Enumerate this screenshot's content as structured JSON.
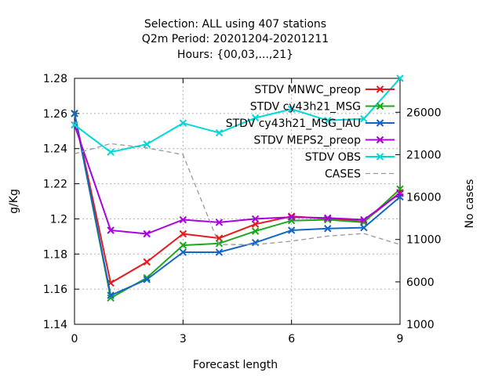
{
  "chart_data": {
    "type": "line",
    "title_lines": [
      "Selection: ALL using   407 stations",
      "Q2m   Period: 20201204-20201211",
      "Hours: {00,03,...,21}"
    ],
    "xlabel": "Forecast length",
    "ylabel": "g/Kg",
    "y2label": "No cases",
    "xlim": [
      0,
      9
    ],
    "ylim": [
      1.14,
      1.28
    ],
    "y2lim": [
      1000,
      30000
    ],
    "xticks": [
      0,
      3,
      6,
      9
    ],
    "yticks": [
      1.14,
      1.16,
      1.18,
      1.2,
      1.22,
      1.24,
      1.26,
      1.28
    ],
    "ytick_labels": [
      "1.14",
      "1.16",
      "1.18",
      "1.2",
      "1.22",
      "1.24",
      "1.26",
      "1.28"
    ],
    "y2ticks": [
      1000,
      6000,
      11000,
      16000,
      21000,
      26000
    ],
    "grid": true,
    "legend_position": "top-right",
    "series": [
      {
        "name": "STDV MNWC_preop",
        "color": "#e41a1c",
        "axis": "y",
        "marker": "x",
        "x": [
          0,
          1,
          2,
          3,
          4,
          5,
          6,
          7,
          8,
          9
        ],
        "values": [
          1.26,
          1.1635,
          1.1755,
          1.1915,
          1.189,
          1.197,
          1.2015,
          1.2,
          1.1985,
          1.215
        ]
      },
      {
        "name": "STDV cy43h21_MSG",
        "color": "#1ca81c",
        "axis": "y",
        "marker": "x",
        "x": [
          0,
          1,
          2,
          3,
          4,
          5,
          6,
          7,
          8,
          9
        ],
        "values": [
          1.26,
          1.155,
          1.1665,
          1.185,
          1.186,
          1.193,
          1.199,
          1.1995,
          1.198,
          1.217
        ]
      },
      {
        "name": "STDV cy43h21_MSG_IAU",
        "color": "#1565c8",
        "axis": "y",
        "marker": "x",
        "x": [
          0,
          1,
          2,
          3,
          4,
          5,
          6,
          7,
          8,
          9
        ],
        "values": [
          1.26,
          1.1565,
          1.1655,
          1.181,
          1.181,
          1.1865,
          1.1935,
          1.1945,
          1.195,
          1.2125
        ]
      },
      {
        "name": "STDV MEPS2_preop",
        "color": "#aa00dd",
        "axis": "y",
        "marker": "x",
        "x": [
          0,
          1,
          2,
          3,
          4,
          5,
          6,
          7,
          8,
          9
        ],
        "values": [
          1.2535,
          1.1935,
          1.1915,
          1.1995,
          1.198,
          1.2,
          1.201,
          1.2005,
          1.1995,
          1.2145
        ]
      },
      {
        "name": "STDV OBS",
        "color": "#00d8d8",
        "axis": "y",
        "marker": "x",
        "x": [
          0,
          1,
          2,
          3,
          4,
          5,
          6,
          7,
          8,
          9
        ],
        "values": [
          1.2535,
          1.238,
          1.2425,
          1.2545,
          1.249,
          1.2575,
          1.2625,
          1.256,
          1.257,
          1.28
        ]
      },
      {
        "name": "CASES",
        "color": "#999999",
        "axis": "y2",
        "dash": true,
        "marker": "none",
        "x": [
          0,
          1,
          2,
          3,
          4,
          5,
          6,
          7,
          8,
          9
        ],
        "values": [
          21100,
          22300,
          21800,
          21000,
          10400,
          10400,
          10800,
          11400,
          11700,
          10400
        ]
      }
    ]
  }
}
